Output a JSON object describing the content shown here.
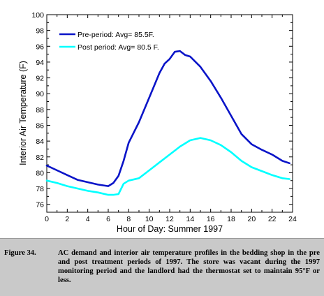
{
  "chart_data": {
    "type": "line",
    "xlabel": "Hour of Day: Summer 1997",
    "ylabel": "Interior Air Temperature (F)",
    "xlim": [
      0,
      24
    ],
    "ylim": [
      75,
      100
    ],
    "xticks": [
      "0",
      "2",
      "4",
      "6",
      "8",
      "10",
      "12",
      "14",
      "16",
      "18",
      "20",
      "22",
      "24"
    ],
    "yticks": [
      "76",
      "78",
      "80",
      "82",
      "84",
      "86",
      "88",
      "90",
      "92",
      "94",
      "96",
      "98",
      "100"
    ],
    "legend_position": "top-left",
    "grid": false,
    "series": [
      {
        "name": "Pre-period: Avg= 85.5F.",
        "color": "#0a14c8",
        "x": [
          0,
          1,
          2,
          3,
          4,
          5,
          5.5,
          6,
          6.5,
          7,
          7.5,
          8,
          9,
          10,
          11,
          11.5,
          12,
          12.5,
          13,
          13.5,
          14,
          15,
          16,
          17,
          18,
          19,
          20,
          21,
          22,
          23,
          23.7
        ],
        "y": [
          80.9,
          80.3,
          79.7,
          79.1,
          78.8,
          78.5,
          78.4,
          78.3,
          78.7,
          79.6,
          81.5,
          83.8,
          86.4,
          89.5,
          92.6,
          93.8,
          94.4,
          95.3,
          95.4,
          94.9,
          94.7,
          93.4,
          91.6,
          89.5,
          87.2,
          84.9,
          83.6,
          82.9,
          82.3,
          81.5,
          81.2
        ]
      },
      {
        "name": "Post period: Avg= 80.5 F.",
        "color": "#00ffff",
        "x": [
          0,
          1,
          2,
          3,
          4,
          5,
          6,
          6.5,
          7,
          7.5,
          8,
          9,
          10,
          11,
          12,
          13,
          14,
          15,
          16,
          17,
          18,
          19,
          20,
          21,
          22,
          23,
          23.7
        ],
        "y": [
          79.0,
          78.7,
          78.3,
          78.0,
          77.7,
          77.5,
          77.2,
          77.2,
          77.3,
          78.6,
          79.0,
          79.3,
          80.3,
          81.3,
          82.3,
          83.3,
          84.1,
          84.4,
          84.1,
          83.5,
          82.6,
          81.5,
          80.7,
          80.2,
          79.7,
          79.3,
          79.2
        ]
      }
    ]
  },
  "caption": {
    "label": "Figure 34.",
    "text": "AC demand and interior air temperature profiles in the bedding shop in the pre and post treatment periods of 1997. The store was vacant during the 1997 monitoring period and the landlord had the thermostat set to maintain 95°F or less."
  }
}
